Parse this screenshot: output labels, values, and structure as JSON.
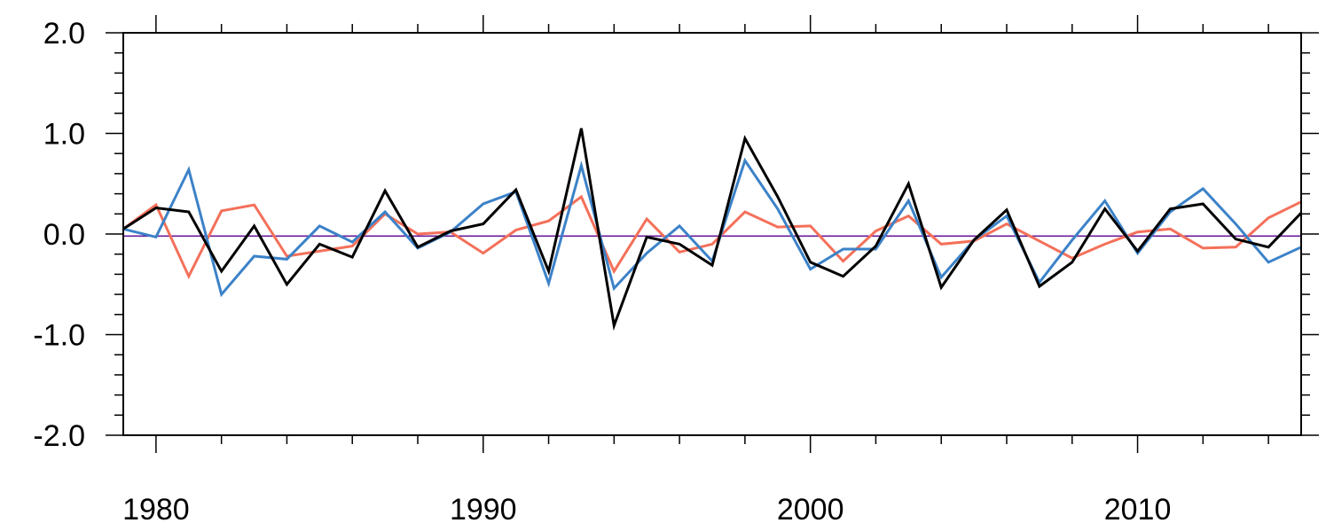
{
  "chart_data": {
    "type": "line",
    "title": "",
    "xlabel": "",
    "ylabel": "",
    "xlim": [
      1979,
      2015
    ],
    "ylim": [
      -2.0,
      2.0
    ],
    "x_major_ticks": [
      1980,
      1990,
      2000,
      2010
    ],
    "x_tick_labels": [
      "1980",
      "1990",
      "2000",
      "2010"
    ],
    "x_minor_step": 2,
    "y_major_ticks": [
      -2.0,
      -1.0,
      0.0,
      1.0,
      2.0
    ],
    "y_tick_labels": [
      "-2.0",
      "-1.0",
      "0.0",
      "1.0",
      "2.0"
    ],
    "y_minor_step": 0.2,
    "grid": false,
    "legend": "none",
    "reference_line": {
      "y": -0.02,
      "color": "#6a1b9a"
    },
    "x": [
      1979,
      1980,
      1981,
      1982,
      1983,
      1984,
      1985,
      1986,
      1987,
      1988,
      1989,
      1990,
      1991,
      1992,
      1993,
      1994,
      1995,
      1996,
      1997,
      1998,
      1999,
      2000,
      2001,
      2002,
      2003,
      2004,
      2005,
      2006,
      2007,
      2008,
      2009,
      2010,
      2011,
      2012,
      2013,
      2014,
      2015
    ],
    "series": [
      {
        "color": "#000000",
        "values": [
          0.05,
          0.26,
          0.22,
          -0.37,
          0.08,
          -0.5,
          -0.1,
          -0.23,
          0.43,
          -0.13,
          0.03,
          0.1,
          0.44,
          -0.37,
          1.05,
          -0.91,
          -0.03,
          -0.1,
          -0.31,
          0.95,
          0.37,
          -0.28,
          -0.42,
          -0.12,
          0.5,
          -0.53,
          -0.06,
          0.24,
          -0.52,
          -0.28,
          0.25,
          -0.17,
          0.25,
          0.3,
          -0.05,
          -0.13,
          0.21
        ]
      },
      {
        "color": "#3c82c8",
        "values": [
          0.05,
          -0.03,
          0.64,
          -0.6,
          -0.22,
          -0.25,
          0.08,
          -0.08,
          0.22,
          -0.14,
          0.02,
          0.3,
          0.42,
          -0.49,
          0.68,
          -0.54,
          -0.19,
          0.08,
          -0.27,
          0.73,
          0.25,
          -0.35,
          -0.15,
          -0.15,
          0.33,
          -0.43,
          -0.06,
          0.18,
          -0.48,
          -0.06,
          0.33,
          -0.19,
          0.22,
          0.45,
          0.1,
          -0.28,
          -0.13
        ]
      },
      {
        "color": "#f4705a",
        "values": [
          0.05,
          0.29,
          -0.42,
          0.23,
          0.29,
          -0.22,
          -0.17,
          -0.12,
          0.2,
          0.0,
          0.02,
          -0.19,
          0.04,
          0.13,
          0.37,
          -0.37,
          0.15,
          -0.18,
          -0.1,
          0.22,
          0.07,
          0.08,
          -0.27,
          0.03,
          0.18,
          -0.1,
          -0.07,
          0.1,
          -0.07,
          -0.24,
          -0.1,
          0.02,
          0.05,
          -0.14,
          -0.13,
          0.16,
          0.32
        ]
      }
    ]
  }
}
